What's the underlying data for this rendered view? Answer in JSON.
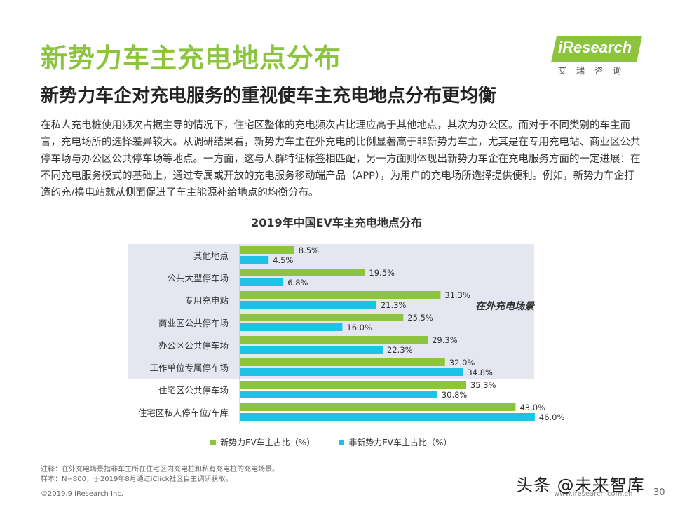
{
  "header": {
    "title": "新势力车主充电地点分布",
    "subtitle": "新势力车企对充电服务的重视使车主充电地点分布更均衡"
  },
  "logo": {
    "brand": "iResearch",
    "sub": "艾瑞咨询"
  },
  "body_text": "在私人充电桩使用频次占据主导的情况下，住宅区整体的充电频次占比理应高于其他地点，其次为办公区。而对于不同类别的车主而言，充电场所的选择差异较大。从调研结果看，新势力车主在外充电的比例显著高于非新势力车主，尤其是在专用充电站、商业区公共停车场与办公区公共停车场等地点。一方面，这与人群特征标签相匹配，另一方面则体现出新势力车企在充电服务方面的一定进展：在不同充电服务模式的基础上，通过专属或开放的充电服务移动端产品（APP），为用户的充电场所选择提供便利。例如，新势力车企打造的充/换电站就从侧面促进了车主能源补给地点的均衡分布。",
  "chart_data": {
    "type": "bar",
    "orientation": "horizontal",
    "title": "2019年中国EV车主充电地点分布",
    "categories": [
      "其他地点",
      "公共大型停车场",
      "专用充电站",
      "商业区公共停车场",
      "办公区公共停车场",
      "工作单位专属停车场",
      "住宅区公共停车场",
      "住宅区私人停车位/车库"
    ],
    "series": [
      {
        "name": "新势力EV车主占比（%）",
        "color": "#8cc43f",
        "values": [
          8.5,
          19.5,
          31.3,
          25.5,
          29.3,
          32.0,
          35.3,
          43.0
        ]
      },
      {
        "name": "非新势力EV车主占比（%）",
        "color": "#1ec2e6",
        "values": [
          4.5,
          6.8,
          21.3,
          16.0,
          22.3,
          34.8,
          30.8,
          46.0
        ]
      }
    ],
    "value_format": "%",
    "highlight_region": {
      "label": "在外充电场景",
      "rows": [
        0,
        1,
        2,
        3,
        4,
        5
      ],
      "color": "#e4e7f0"
    },
    "xlim": [
      0,
      50
    ]
  },
  "footer": {
    "note1": "注释：在外充电场景指非车主所在住宅区内充电桩和私有充电桩的充电场景。",
    "note2": "样本：N=800，于2019年8月通过iClick社区自主调研获取。",
    "copyright": "©2019.9  iResearch Inc.",
    "website": "www.iresearch.com.cn",
    "page": "30",
    "watermark": "头条 @未来智库"
  }
}
